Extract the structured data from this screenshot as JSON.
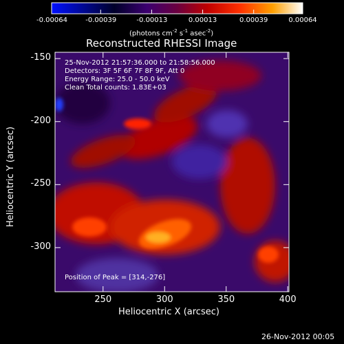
{
  "colorbar": {
    "ticks": [
      "-0.00064",
      "-0.00039",
      "-0.00013",
      "0.00013",
      "0.00039",
      "0.00064"
    ],
    "values": [
      -0.00064,
      -0.00039,
      -0.00013,
      0.00013,
      0.00039,
      0.00064
    ],
    "units_label": "(photons cm",
    "units_sup1": "-2",
    "units_mid1": " s",
    "units_sup2": "-1",
    "units_mid2": " asec",
    "units_sup3": "-2",
    "units_end": ")",
    "colors": [
      "#0000ff",
      "#000000",
      "#800080",
      "#ff0000",
      "#ff8800",
      "#ffffff"
    ]
  },
  "image": {
    "title": "Reconstructed RHESSI Image",
    "annotation_lines": [
      "25-Nov-2012 21:57:36.000 to 21:58:56.000",
      "Detectors: 3F 5F 6F 7F 8F 9F, Att 0",
      "Energy Range: 25.0 - 50.0 keV",
      "Clean     Total counts: 1.83E+03"
    ],
    "peak_label": "Position of Peak = [314,-276]"
  },
  "axes": {
    "xlabel": "Heliocentric X (arcsec)",
    "ylabel": "Heliocentric Y (arcsec)",
    "xticks": [
      "250",
      "300",
      "350",
      "400"
    ],
    "xtick_values": [
      250,
      300,
      350,
      400
    ],
    "yticks": [
      "-150",
      "-200",
      "-250",
      "-300"
    ],
    "ytick_values": [
      -150,
      -200,
      -250,
      -300
    ],
    "xlim": [
      211,
      401
    ],
    "ylim": [
      -335,
      -145
    ]
  },
  "footer": {
    "date": "26-Nov-2012 00:05"
  }
}
